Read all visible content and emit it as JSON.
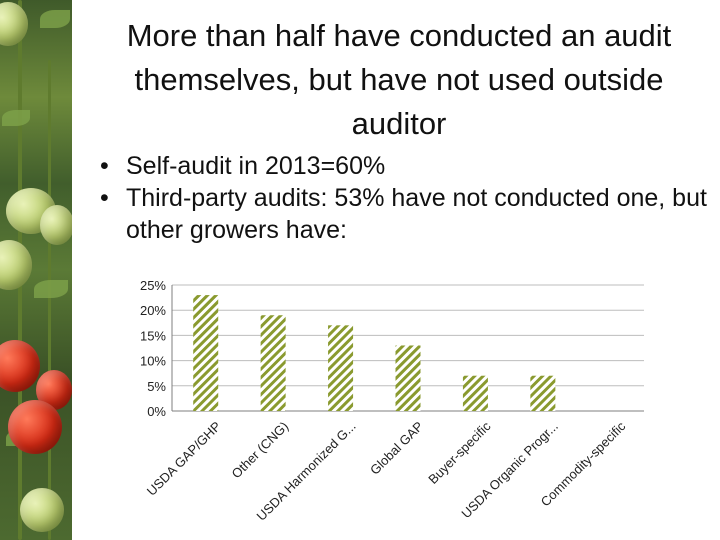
{
  "slide": {
    "title": "More than half have conducted an audit themselves, but have not used outside auditor",
    "bullets": [
      "Self-audit in 2013=60%",
      "Third-party audits: 53% have not conducted one, but other growers have:"
    ]
  },
  "chart_data": {
    "type": "bar",
    "categories": [
      "USDA GAP/GHP",
      "Other (CNG)",
      "USDA Harmonized G...",
      "Global GAP",
      "Buyer-specific",
      "USDA Organic Progr...",
      "Commodity-specific"
    ],
    "values": [
      23,
      19,
      17,
      13,
      7,
      7,
      0
    ],
    "ylim": [
      0,
      25
    ],
    "yticks": [
      "0%",
      "5%",
      "10%",
      "15%",
      "20%",
      "25%"
    ],
    "ytick_values": [
      0,
      5,
      10,
      15,
      20,
      25
    ],
    "grid": true,
    "bar_pattern": "diagonal-hatch",
    "colors": {
      "bar": "#8a9a2f",
      "bar_bg": "#ffffff",
      "grid": "#bdbdbd",
      "axis": "#7f7f7f"
    }
  }
}
